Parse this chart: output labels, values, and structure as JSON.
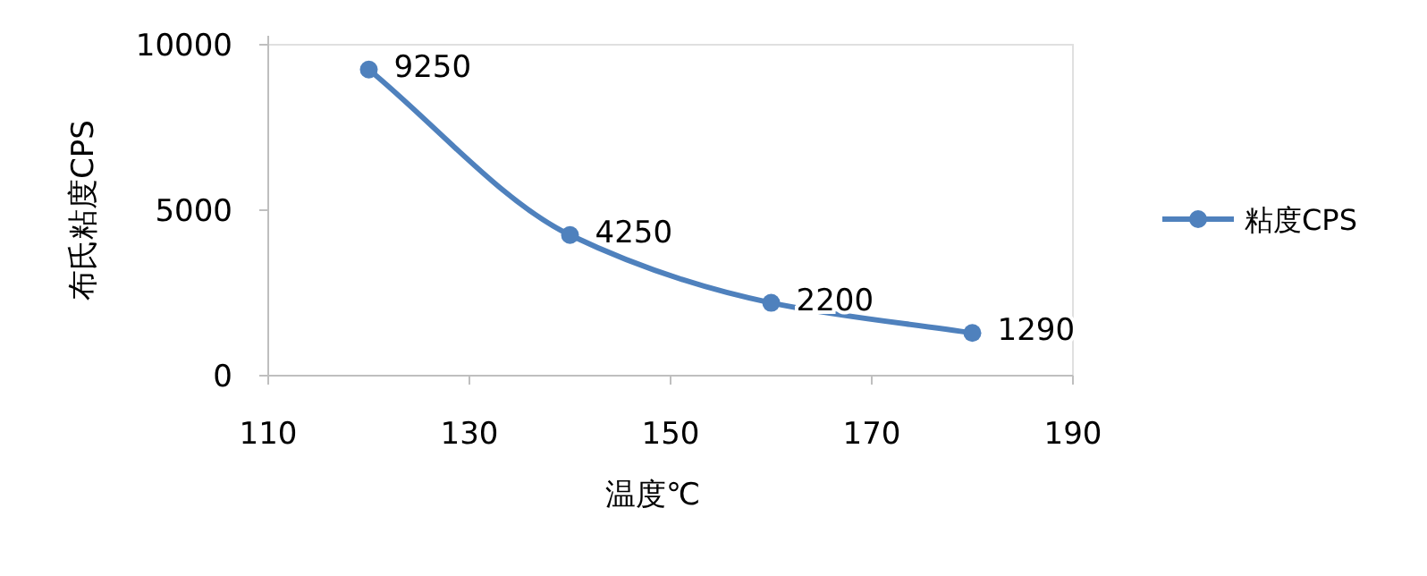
{
  "chart_data": {
    "type": "line",
    "xlabel": "温度℃",
    "ylabel": "布氏粘度CPS",
    "x": [
      120,
      140,
      160,
      180
    ],
    "series": [
      {
        "name": "粘度CPS",
        "color": "#4f81bd",
        "values": [
          9250,
          4250,
          2200,
          1290
        ]
      }
    ],
    "xlim": [
      110,
      190
    ],
    "xticks": [
      110,
      130,
      150,
      170,
      190
    ],
    "ylim": [
      0,
      10000
    ],
    "yticks": [
      0,
      5000,
      10000
    ],
    "data_labels": true,
    "legend": "right",
    "marker": "circle",
    "line_style": "solid",
    "grid": false
  }
}
